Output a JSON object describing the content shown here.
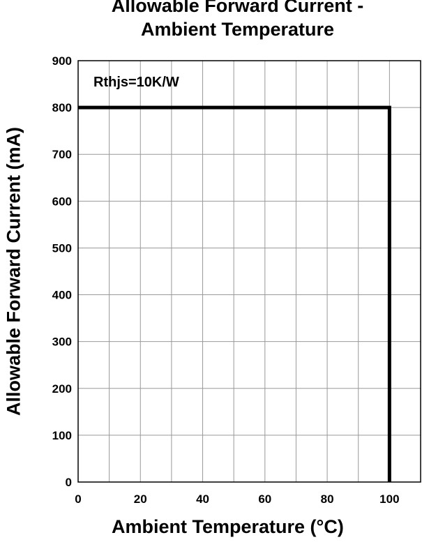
{
  "chart_data": {
    "type": "line",
    "title_line1": "Allowable Forward Current -",
    "title_line2": "Ambient Temperature",
    "xlabel": "Ambient Temperature (°C)",
    "ylabel": "Allowable Forward Current (mA)",
    "xlim": [
      0,
      110
    ],
    "ylim": [
      0,
      900
    ],
    "x_ticks": [
      0,
      20,
      40,
      60,
      80,
      100
    ],
    "y_ticks": [
      0,
      100,
      200,
      300,
      400,
      500,
      600,
      700,
      800,
      900
    ],
    "x_gridlines": [
      10,
      20,
      30,
      40,
      50,
      60,
      70,
      80,
      90,
      100
    ],
    "y_gridlines": [
      100,
      200,
      300,
      400,
      500,
      600,
      700,
      800
    ],
    "grid": true,
    "annotation": "Rthjs=10K/W",
    "series": [
      {
        "x": [
          0,
          100,
          100
        ],
        "y": [
          800,
          800,
          0
        ]
      }
    ],
    "line_color": "#000000",
    "grid_color": "#999999"
  }
}
